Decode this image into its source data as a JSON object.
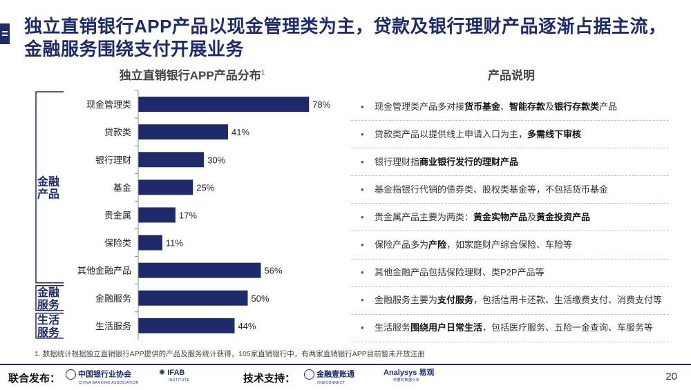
{
  "title": "独立直销银行APP产品以现金管理类为主，贷款及银行理财产品逐渐占据主流，金融服务围绕支付开展业务",
  "chart_data": {
    "type": "bar",
    "orientation": "horizontal",
    "title": "独立直销银行APP产品分布",
    "title_superscript": "1",
    "categories": [
      "现金管理类",
      "贷款类",
      "银行理财",
      "基金",
      "贵金属",
      "保险类",
      "其他金融产品",
      "金融服务",
      "生活服务"
    ],
    "values": [
      78,
      41,
      30,
      25,
      17,
      11,
      56,
      50,
      44
    ],
    "value_labels": [
      "78%",
      "41%",
      "30%",
      "25%",
      "17%",
      "11%",
      "56%",
      "50%",
      "44%"
    ],
    "xlim": [
      0,
      100
    ],
    "bar_color": "#1f2a6b",
    "groups": [
      {
        "label": "金融\n产品",
        "count": 7
      },
      {
        "label": "金融\n服务",
        "count": 1
      },
      {
        "label": "生活\n服务",
        "count": 1
      }
    ]
  },
  "description": {
    "title": "产品说明",
    "bullet": "•",
    "items": [
      [
        {
          "t": "现金管理类产品多对接"
        },
        {
          "t": "货币基金",
          "b": true
        },
        {
          "t": "、"
        },
        {
          "t": "智能存款",
          "b": true
        },
        {
          "t": "及"
        },
        {
          "t": "银行存款类",
          "b": true
        },
        {
          "t": "产品"
        }
      ],
      [
        {
          "t": "贷款类产品以提供线上申请入口为主，"
        },
        {
          "t": "多需线下审核",
          "b": true
        }
      ],
      [
        {
          "t": "银行理财指"
        },
        {
          "t": "商业银行发行的理财产品",
          "b": true
        }
      ],
      [
        {
          "t": "基金指银行代销的债券类、股权类基金等，不包括货币基金"
        }
      ],
      [
        {
          "t": "贵金属产品主要为两类："
        },
        {
          "t": "黄金实物产品",
          "b": true
        },
        {
          "t": "及"
        },
        {
          "t": "黄金投资产品",
          "b": true
        }
      ],
      [
        {
          "t": "保险产品多为"
        },
        {
          "t": "产险",
          "b": true
        },
        {
          "t": "，如家庭财产综合保险、车险等"
        }
      ],
      [
        {
          "t": "其他金融产品包括保险理财、类P2P产品等"
        }
      ],
      [
        {
          "t": "金融服务主要为"
        },
        {
          "t": "支付服务",
          "b": true
        },
        {
          "t": "，包括信用卡还款、生活缴费支付、消费支付等"
        }
      ],
      [
        {
          "t": "生活服务"
        },
        {
          "t": "围绕用户日常生活",
          "b": true
        },
        {
          "t": "，包括医疗服务、五险一金查询、车服务等"
        }
      ]
    ]
  },
  "footnote": "1. 数据统计根据独立直销银行APP提供的产品及服务统计获得，105家直销银行中，有两家直销银行APP目前暂未开放注册",
  "footer": {
    "joint_label": "联合发布：",
    "logo1": "中国银行业协会",
    "logo1_sub": "CHINA BANKING ASSOCIATION",
    "logo2": "IFAB",
    "logo2_sub": "INSTITUTE",
    "tech_label": "技术支持：",
    "logo3": "金融壹账通",
    "logo3_sub": "ONECONNECT",
    "logo4": "Analysys 易观",
    "logo4_sub": "你要的数据分析",
    "page": "20"
  }
}
